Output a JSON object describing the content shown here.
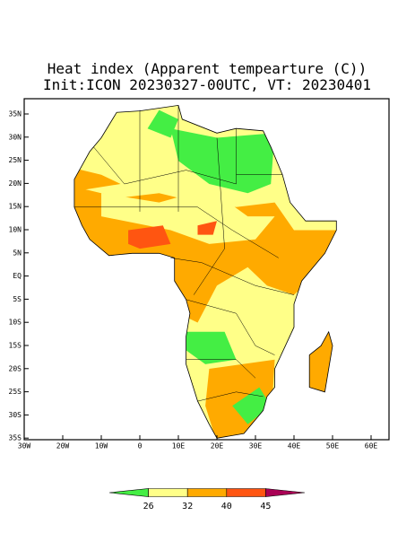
{
  "header": {
    "title": "Heat index (Apparent tempearture (C))",
    "subtitle": "Init:ICON 20230327-00UTC, VT: 20230401"
  },
  "axes": {
    "y_labels": [
      "35N",
      "30N",
      "25N",
      "20N",
      "15N",
      "10N",
      "5N",
      "EQ",
      "5S",
      "10S",
      "15S",
      "20S",
      "25S",
      "30S",
      "35S"
    ],
    "x_labels": [
      "30W",
      "20W",
      "10W",
      "0",
      "10E",
      "20E",
      "30E",
      "40E",
      "50E",
      "60E"
    ]
  },
  "colorbar": {
    "colors": [
      "#44ee44",
      "#ffff88",
      "#ffaa00",
      "#ff5511",
      "#aa0055"
    ],
    "labels": [
      "26",
      "32",
      "40",
      "45"
    ]
  }
}
